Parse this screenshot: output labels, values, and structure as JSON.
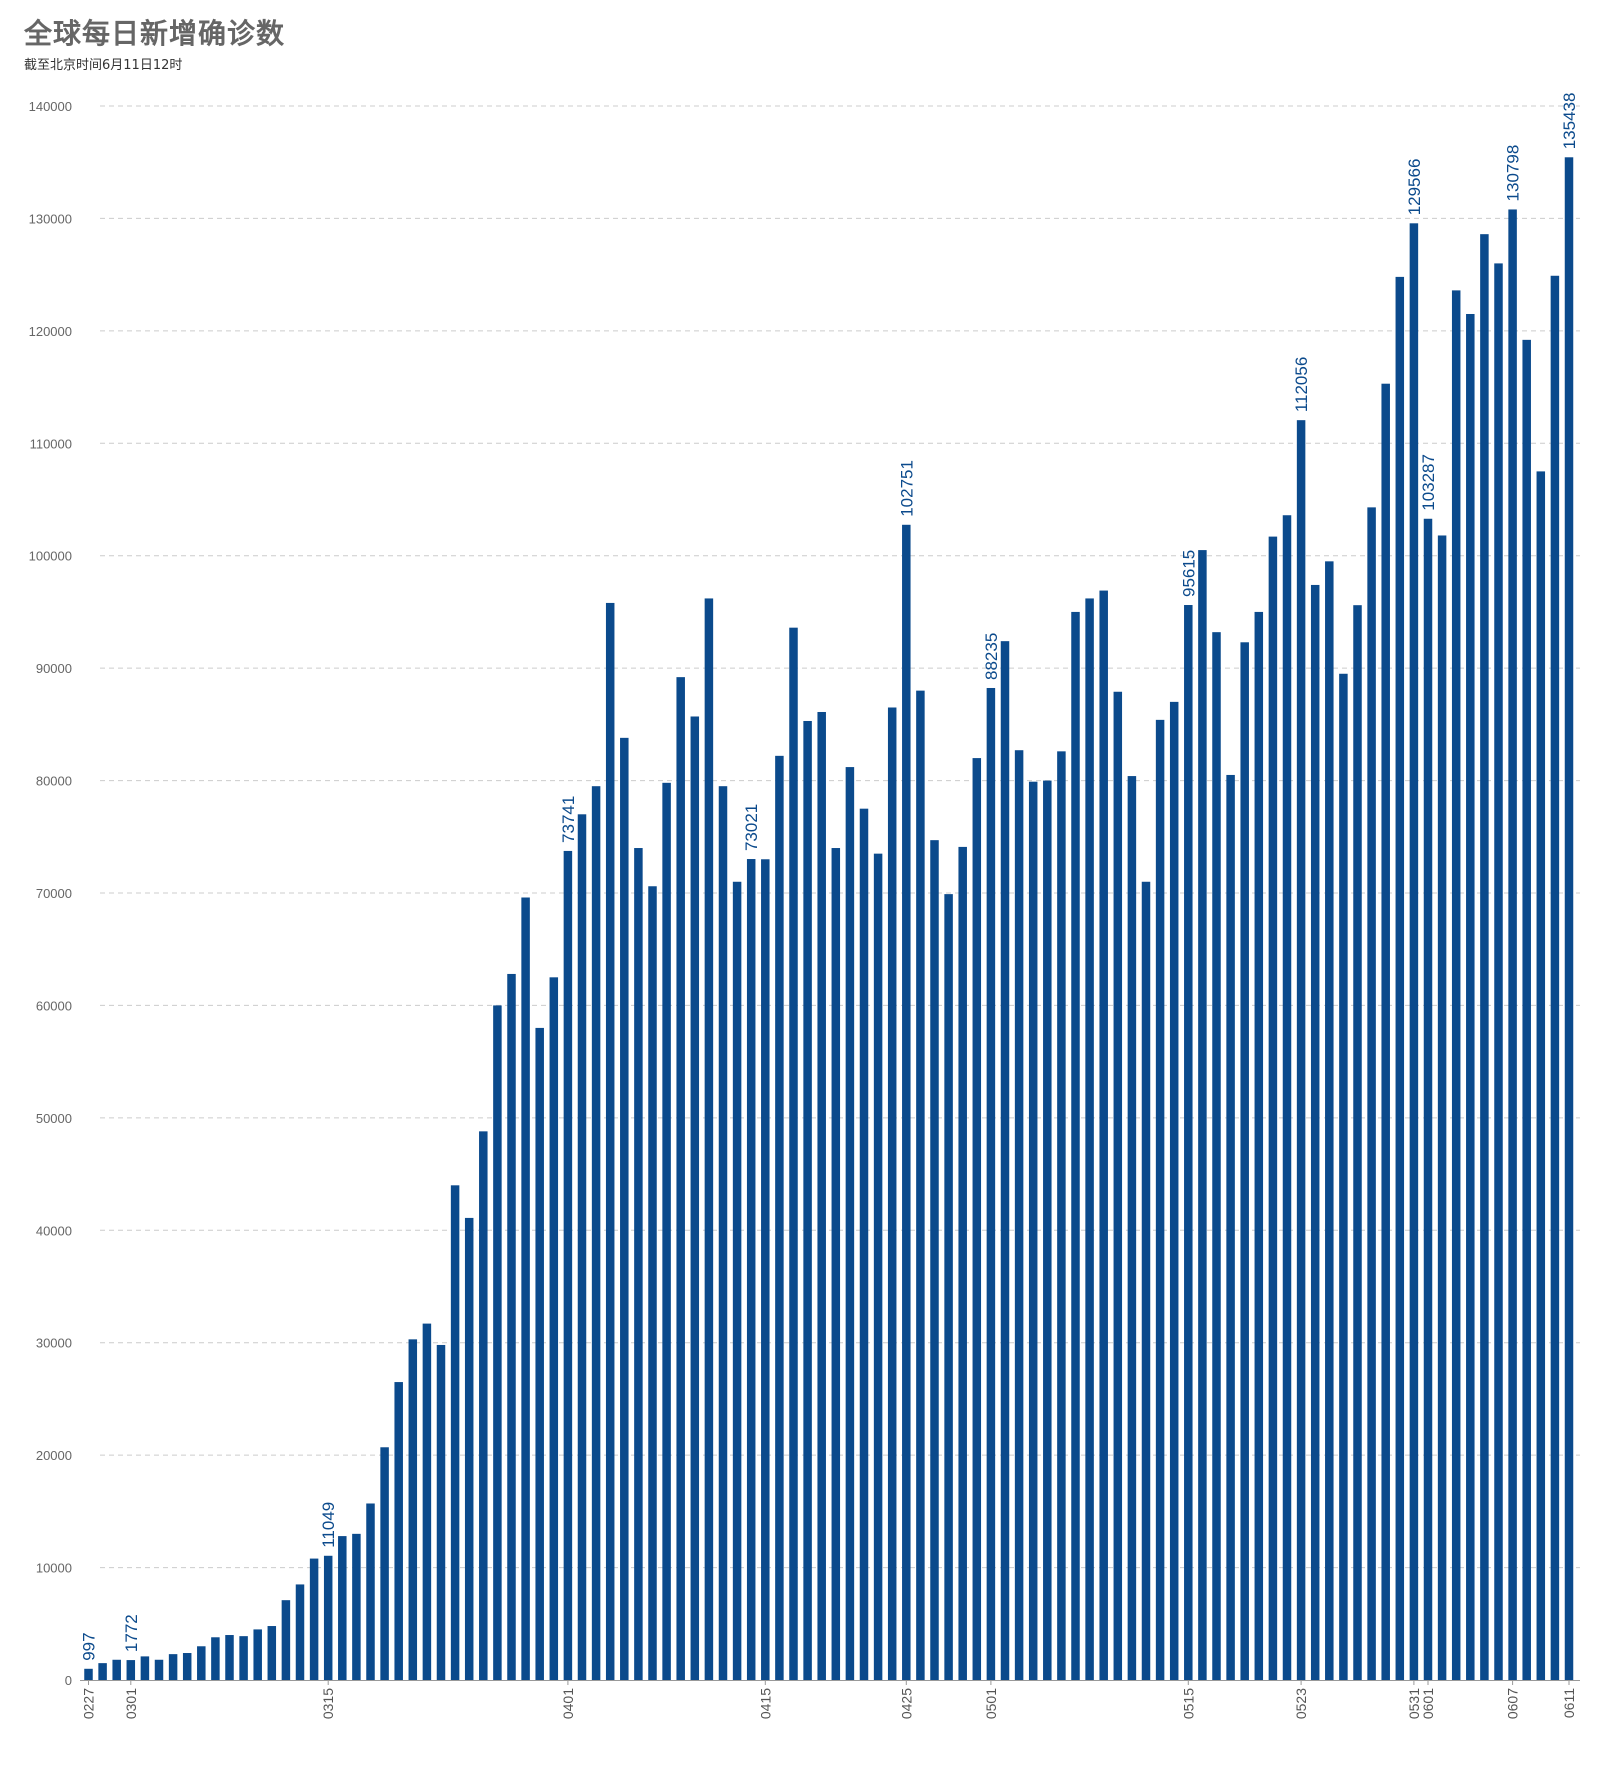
{
  "title": "全球每日新增确诊数",
  "subtitle": "截至北京时间6月11日12时",
  "colors": {
    "bar": "#0b4a8c",
    "grid": "#cccccc",
    "axis": "#999999",
    "label": "#0b4a8c"
  },
  "chart_data": {
    "type": "bar",
    "title": "全球每日新增确诊数",
    "subtitle": "截至北京时间6月11日12时",
    "xlabel": "",
    "ylabel": "",
    "ylim": [
      0,
      140000
    ],
    "yticks": [
      0,
      10000,
      20000,
      30000,
      40000,
      50000,
      60000,
      70000,
      80000,
      90000,
      100000,
      110000,
      120000,
      130000,
      140000
    ],
    "grid": true,
    "legend": "none",
    "x_tick_labels": [
      {
        "index": 0,
        "label": "0227"
      },
      {
        "index": 3,
        "label": "0301"
      },
      {
        "index": 17,
        "label": "0315"
      },
      {
        "index": 34,
        "label": "0401"
      },
      {
        "index": 48,
        "label": "0415"
      },
      {
        "index": 58,
        "label": "0425"
      },
      {
        "index": 64,
        "label": "0501"
      },
      {
        "index": 78,
        "label": "0515"
      },
      {
        "index": 86,
        "label": "0523"
      },
      {
        "index": 94,
        "label": "0531"
      },
      {
        "index": 95,
        "label": "0601"
      },
      {
        "index": 101,
        "label": "0607"
      },
      {
        "index": 105,
        "label": "0611"
      }
    ],
    "values": [
      997,
      1500,
      1800,
      1772,
      2100,
      1800,
      2300,
      2400,
      3000,
      3800,
      4000,
      3900,
      4500,
      4800,
      7100,
      8500,
      10800,
      11049,
      12800,
      13000,
      15700,
      20700,
      26500,
      30300,
      31700,
      29800,
      44000,
      41100,
      48800,
      60000,
      62800,
      69600,
      58000,
      62500,
      73741,
      77000,
      79500,
      95800,
      83800,
      74000,
      70600,
      79800,
      89200,
      85700,
      96200,
      79500,
      71000,
      73021,
      73000,
      82200,
      93600,
      85300,
      86100,
      74000,
      81200,
      77500,
      73500,
      86500,
      102751,
      88000,
      74700,
      69900,
      74100,
      82000,
      88235,
      92400,
      82700,
      79900,
      80000,
      82600,
      95000,
      96200,
      96900,
      87900,
      80400,
      71000,
      85400,
      87000,
      95615,
      100500,
      93200,
      80500,
      92300,
      95000,
      101700,
      103600,
      112056,
      97400,
      99500,
      89500,
      95600,
      104300,
      115300,
      124800,
      129566,
      103287,
      101800,
      123600,
      121500,
      128600,
      126000,
      130798,
      119200,
      107500,
      124900,
      135438
    ],
    "data_labels": [
      {
        "index": 0,
        "text": "997"
      },
      {
        "index": 3,
        "text": "1772"
      },
      {
        "index": 17,
        "text": "11049"
      },
      {
        "index": 34,
        "text": "73741"
      },
      {
        "index": 47,
        "text": "73021"
      },
      {
        "index": 58,
        "text": "102751"
      },
      {
        "index": 64,
        "text": "88235"
      },
      {
        "index": 78,
        "text": "95615"
      },
      {
        "index": 86,
        "text": "112056"
      },
      {
        "index": 94,
        "text": "129566"
      },
      {
        "index": 95,
        "text": "103287"
      },
      {
        "index": 101,
        "text": "130798"
      },
      {
        "index": 105,
        "text": "135438"
      }
    ]
  }
}
